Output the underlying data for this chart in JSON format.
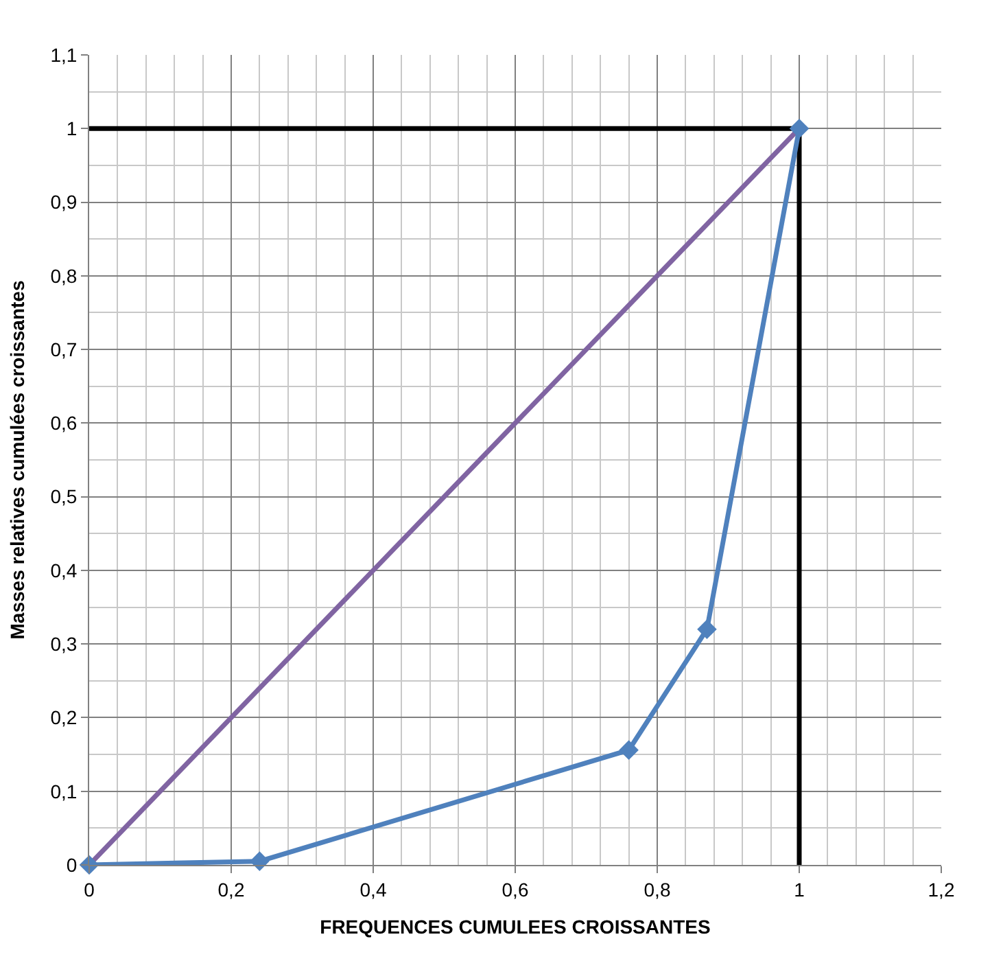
{
  "chart_data": {
    "type": "line",
    "xlabel": "FREQUENCES CUMULEES CROISSANTES",
    "ylabel": "Masses relatives cumulées croissantes",
    "xlim": [
      0,
      1.2
    ],
    "xticks": [
      0,
      {
        "value": 0.2,
        "label": "0,2"
      },
      {
        "value": 0.4,
        "label": "0,4"
      },
      {
        "value": 0.6,
        "label": "0,6"
      },
      {
        "value": 0.8,
        "label": "0,8"
      },
      1,
      {
        "value": 1.2,
        "label": "1,2"
      }
    ],
    "ylim": [
      0,
      1.1
    ],
    "yticks": [
      0,
      {
        "value": 0.1,
        "label": "0,1"
      },
      {
        "value": 0.2,
        "label": "0,2"
      },
      {
        "value": 0.3,
        "label": "0,3"
      },
      {
        "value": 0.4,
        "label": "0,4"
      },
      {
        "value": 0.5,
        "label": "0,5"
      },
      {
        "value": 0.6,
        "label": "0,6"
      },
      {
        "value": 0.7,
        "label": "0,7"
      },
      {
        "value": 0.8,
        "label": "0,8"
      },
      {
        "value": 0.9,
        "label": "0,9"
      },
      1,
      {
        "value": 1.1,
        "label": "1,1"
      }
    ],
    "grid": true,
    "series": [
      {
        "color": "#000000",
        "x": [
          0,
          1,
          1
        ],
        "values": [
          1,
          1,
          0
        ],
        "marker": "none"
      },
      {
        "color": "#8064a2",
        "x": [
          0,
          1
        ],
        "values": [
          0,
          1
        ],
        "marker": "none"
      },
      {
        "color": "#4f81bd",
        "x": [
          0,
          0.24,
          0.76,
          0.87,
          1
        ],
        "values": [
          0,
          0.005,
          0.156,
          0.32,
          1
        ],
        "marker": "diamond"
      }
    ]
  }
}
